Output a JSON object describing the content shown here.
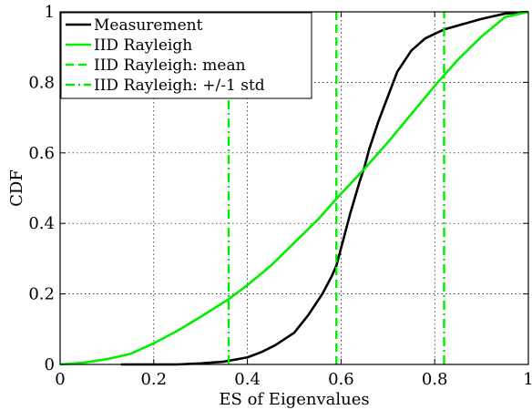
{
  "chart_data": {
    "type": "line",
    "title": "",
    "xlabel": "ES of Eigenvalues",
    "ylabel": "CDF",
    "xlim": [
      0,
      1
    ],
    "ylim": [
      0,
      1
    ],
    "grid": true,
    "legend_position": "top-left",
    "x_ticks": [
      0,
      0.2,
      0.4,
      0.6,
      0.8,
      1
    ],
    "x_tick_labels": [
      "0",
      "0.2",
      "0.4",
      "0.6",
      "0.8",
      "1"
    ],
    "y_ticks": [
      0,
      0.2,
      0.4,
      0.6,
      0.8,
      1
    ],
    "y_tick_labels": [
      "0",
      "0.2",
      "0.4",
      "0.6",
      "0.8",
      "1"
    ],
    "series": [
      {
        "name": "Measurement",
        "color": "#000000",
        "style": "solid",
        "x": [
          0.13,
          0.25,
          0.3,
          0.35,
          0.4,
          0.43,
          0.46,
          0.5,
          0.53,
          0.56,
          0.58,
          0.59,
          0.6,
          0.62,
          0.64,
          0.65,
          0.66,
          0.68,
          0.7,
          0.72,
          0.75,
          0.78,
          0.82,
          0.86,
          0.9,
          0.95,
          1.0
        ],
        "y": [
          0.0,
          0.0,
          0.003,
          0.008,
          0.02,
          0.035,
          0.055,
          0.09,
          0.14,
          0.2,
          0.25,
          0.28,
          0.33,
          0.43,
          0.52,
          0.56,
          0.61,
          0.69,
          0.76,
          0.83,
          0.89,
          0.925,
          0.95,
          0.965,
          0.98,
          0.995,
          1.0
        ]
      },
      {
        "name": "IID Rayleigh",
        "color": "#00ee00",
        "style": "solid",
        "x": [
          0,
          0.05,
          0.1,
          0.15,
          0.2,
          0.25,
          0.3,
          0.36,
          0.4,
          0.45,
          0.5,
          0.55,
          0.59,
          0.65,
          0.7,
          0.75,
          0.8,
          0.85,
          0.9,
          0.95,
          1.0
        ],
        "y": [
          0,
          0.005,
          0.015,
          0.03,
          0.06,
          0.095,
          0.135,
          0.185,
          0.225,
          0.28,
          0.345,
          0.41,
          0.47,
          0.555,
          0.63,
          0.71,
          0.79,
          0.865,
          0.93,
          0.985,
          1.0
        ]
      },
      {
        "name": "IID Rayleigh: mean",
        "color": "#00ee00",
        "style": "dashed",
        "x": [
          0.59,
          0.59
        ],
        "y": [
          0,
          1
        ]
      },
      {
        "name": "IID Rayleigh: +/-1 std",
        "color": "#00ee00",
        "style": "dashdot",
        "x_values": [
          0.36,
          0.82
        ],
        "y": [
          0,
          1
        ]
      }
    ]
  }
}
